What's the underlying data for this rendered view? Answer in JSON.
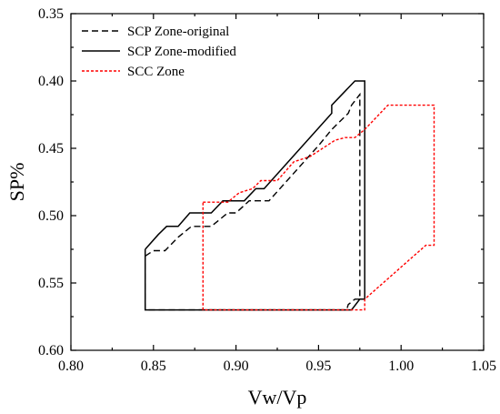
{
  "chart_data": {
    "type": "line",
    "title": "",
    "xlabel": "Vw/Vp",
    "ylabel": "SP%",
    "xlim": [
      0.8,
      1.05
    ],
    "ylim": [
      0.35,
      0.6
    ],
    "y_inverted": true,
    "x_ticks": [
      "0.80",
      "0.85",
      "0.90",
      "0.95",
      "1.00",
      "1.05"
    ],
    "y_ticks": [
      "0.35",
      "0.40",
      "0.45",
      "0.50",
      "0.55",
      "0.60"
    ],
    "legend_position": "top-left",
    "grid": false,
    "series": [
      {
        "name": "SCP Zone-original",
        "color": "#000000",
        "dash": "dashed",
        "points": [
          [
            0.845,
            0.53
          ],
          [
            0.85,
            0.526
          ],
          [
            0.857,
            0.526
          ],
          [
            0.865,
            0.516
          ],
          [
            0.873,
            0.508
          ],
          [
            0.885,
            0.508
          ],
          [
            0.895,
            0.498
          ],
          [
            0.9,
            0.498
          ],
          [
            0.908,
            0.489
          ],
          [
            0.92,
            0.489
          ],
          [
            0.95,
            0.448
          ],
          [
            0.958,
            0.436
          ],
          [
            0.968,
            0.424
          ],
          [
            0.97,
            0.418
          ],
          [
            0.975,
            0.41
          ],
          [
            0.975,
            0.562
          ],
          [
            0.972,
            0.562
          ],
          [
            0.968,
            0.566
          ],
          [
            0.967,
            0.57
          ],
          [
            0.845,
            0.57
          ],
          [
            0.845,
            0.53
          ]
        ]
      },
      {
        "name": "SCP Zone-modified",
        "color": "#000000",
        "dash": "solid",
        "points": [
          [
            0.845,
            0.525
          ],
          [
            0.853,
            0.514
          ],
          [
            0.858,
            0.508
          ],
          [
            0.865,
            0.508
          ],
          [
            0.872,
            0.498
          ],
          [
            0.885,
            0.498
          ],
          [
            0.892,
            0.489
          ],
          [
            0.905,
            0.489
          ],
          [
            0.912,
            0.48
          ],
          [
            0.917,
            0.48
          ],
          [
            0.958,
            0.424
          ],
          [
            0.958,
            0.418
          ],
          [
            0.972,
            0.4
          ],
          [
            0.978,
            0.4
          ],
          [
            0.978,
            0.562
          ],
          [
            0.975,
            0.562
          ],
          [
            0.97,
            0.57
          ],
          [
            0.845,
            0.57
          ],
          [
            0.845,
            0.525
          ]
        ]
      },
      {
        "name": "SCC Zone",
        "color": "#ff0000",
        "dash": "dotted",
        "points": [
          [
            0.88,
            0.49
          ],
          [
            0.895,
            0.49
          ],
          [
            0.902,
            0.483
          ],
          [
            0.91,
            0.48
          ],
          [
            0.915,
            0.474
          ],
          [
            0.925,
            0.474
          ],
          [
            0.935,
            0.46
          ],
          [
            0.945,
            0.456
          ],
          [
            0.955,
            0.448
          ],
          [
            0.96,
            0.444
          ],
          [
            0.966,
            0.442
          ],
          [
            0.972,
            0.442
          ],
          [
            0.978,
            0.436
          ],
          [
            0.992,
            0.418
          ],
          [
            1.02,
            0.418
          ],
          [
            1.02,
            0.522
          ],
          [
            1.015,
            0.522
          ],
          [
            0.978,
            0.562
          ],
          [
            0.978,
            0.57
          ],
          [
            0.88,
            0.57
          ],
          [
            0.88,
            0.49
          ]
        ]
      }
    ]
  }
}
